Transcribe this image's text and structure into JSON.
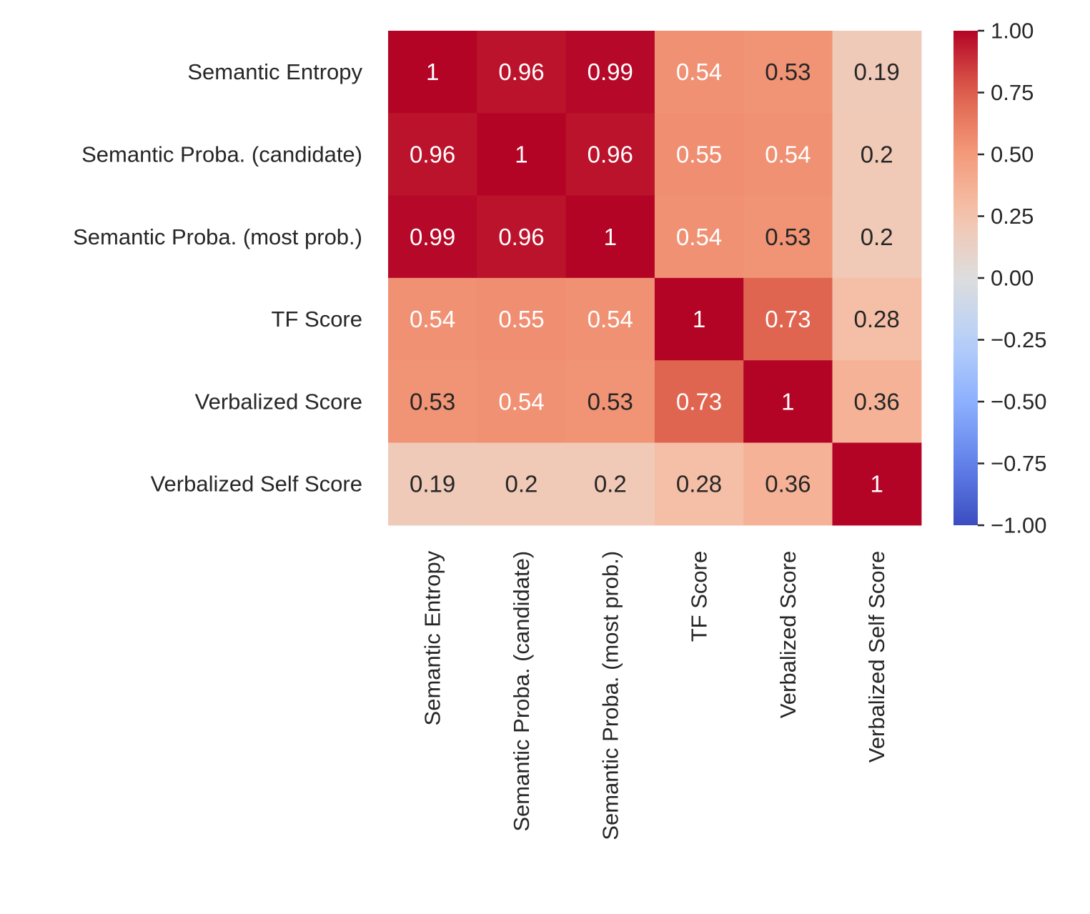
{
  "chart_data": {
    "type": "heatmap",
    "title": "",
    "xlabel": "",
    "ylabel": "",
    "row_labels": [
      "Semantic Entropy",
      "Semantic Proba. (candidate)",
      "Semantic Proba. (most prob.)",
      "TF Score",
      "Verbalized Score",
      "Verbalized Self Score"
    ],
    "col_labels": [
      "Semantic Entropy",
      "Semantic Proba. (candidate)",
      "Semantic Proba. (most prob.)",
      "TF Score",
      "Verbalized Score",
      "Verbalized Self Score"
    ],
    "values": [
      [
        1,
        0.96,
        0.99,
        0.54,
        0.53,
        0.19
      ],
      [
        0.96,
        1,
        0.96,
        0.55,
        0.54,
        0.2
      ],
      [
        0.99,
        0.96,
        1,
        0.54,
        0.53,
        0.2
      ],
      [
        0.54,
        0.55,
        0.54,
        1,
        0.73,
        0.28
      ],
      [
        0.53,
        0.54,
        0.53,
        0.73,
        1,
        0.36
      ],
      [
        0.19,
        0.2,
        0.2,
        0.28,
        0.36,
        1
      ]
    ],
    "annotation_labels": [
      [
        "1",
        "0.96",
        "0.99",
        "0.54",
        "0.53",
        "0.19"
      ],
      [
        "0.96",
        "1",
        "0.96",
        "0.55",
        "0.54",
        "0.2"
      ],
      [
        "0.99",
        "0.96",
        "1",
        "0.54",
        "0.53",
        "0.2"
      ],
      [
        "0.54",
        "0.55",
        "0.54",
        "1",
        "0.73",
        "0.28"
      ],
      [
        "0.53",
        "0.54",
        "0.53",
        "0.73",
        "1",
        "0.36"
      ],
      [
        "0.19",
        "0.2",
        "0.2",
        "0.28",
        "0.36",
        "1"
      ]
    ],
    "colormap": "coolwarm",
    "vmin": -1,
    "vmax": 1,
    "colorbar": {
      "ticks": [
        1.0,
        0.75,
        0.5,
        0.25,
        0.0,
        -0.25,
        -0.5,
        -0.75,
        -1.0
      ],
      "tick_labels": [
        "1.00",
        "0.75",
        "0.50",
        "0.25",
        "0.00",
        "−0.25",
        "−0.50",
        "−0.75",
        "−1.00"
      ]
    },
    "grid": false
  }
}
